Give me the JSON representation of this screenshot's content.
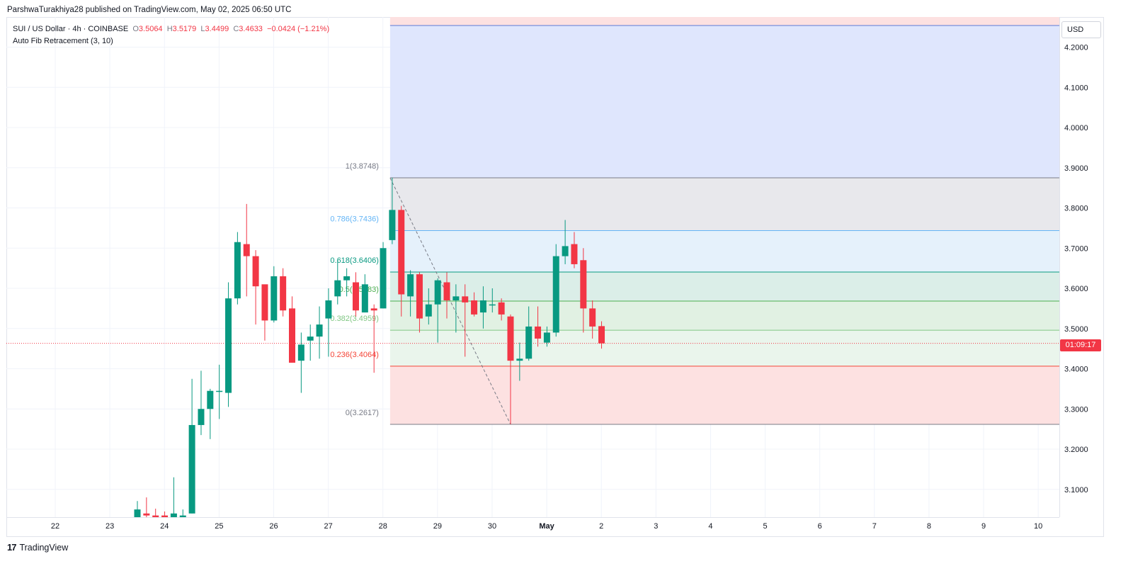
{
  "header": {
    "publish_line": "ParshwaTurakhiya28 published on TradingView.com, May 02, 2025 06:50 UTC"
  },
  "legend": {
    "symbol": "SUI / US Dollar · 4h · COINBASE",
    "open_label": "O",
    "open": "3.5064",
    "high_label": "H",
    "high": "3.5179",
    "low_label": "L",
    "low": "3.4499",
    "close_label": "C",
    "close": "3.4633",
    "change": "−0.0424 (−1.21%)",
    "indicator": "Auto Fib Retracement (3, 10)"
  },
  "currency_button": "USD",
  "current_price_tag": "01:09:17",
  "footer": {
    "logo_mark": "17",
    "logo_text": "TradingView"
  },
  "colors": {
    "up": "#089981",
    "down": "#f23645",
    "grid": "#f0f3fa",
    "fib_1": "#787b86",
    "fib_786": "#64b5f6",
    "fib_618": "#089981",
    "fib_5": "#4caf50",
    "fib_382": "#81c784",
    "fib_236": "#f44336",
    "fib_0": "#787b86"
  },
  "chart_data": {
    "type": "candlestick",
    "title": "SUI / US Dollar · 4h · COINBASE",
    "ylim": [
      3.03,
      4.27
    ],
    "y_ticks": [
      "3.1000",
      "3.2000",
      "3.3000",
      "3.4000",
      "3.5000",
      "3.6000",
      "3.7000",
      "3.8000",
      "3.9000",
      "4.0000",
      "4.1000",
      "4.2000"
    ],
    "x_ticks": [
      "22",
      "23",
      "24",
      "25",
      "26",
      "27",
      "28",
      "29",
      "30",
      "May",
      "2",
      "3",
      "4",
      "5",
      "6",
      "7",
      "8",
      "9",
      "10"
    ],
    "candles": [
      {
        "i": 0,
        "o": 3.025,
        "h": 3.071,
        "l": 3.025,
        "c": 3.05
      },
      {
        "i": 1,
        "o": 3.04,
        "h": 3.08,
        "l": 3.025,
        "c": 3.035
      },
      {
        "i": 2,
        "o": 3.035,
        "h": 3.052,
        "l": 3.025,
        "c": 3.03
      },
      {
        "i": 3,
        "o": 3.035,
        "h": 3.045,
        "l": 3.025,
        "c": 3.03
      },
      {
        "i": 4,
        "o": 3.03,
        "h": 3.13,
        "l": 3.025,
        "c": 3.04
      },
      {
        "i": 5,
        "o": 3.03,
        "h": 3.05,
        "l": 3.025,
        "c": 3.035
      },
      {
        "i": 6,
        "o": 3.04,
        "h": 3.375,
        "l": 3.04,
        "c": 3.26
      },
      {
        "i": 7,
        "o": 3.26,
        "h": 3.395,
        "l": 3.235,
        "c": 3.3
      },
      {
        "i": 8,
        "o": 3.3,
        "h": 3.35,
        "l": 3.225,
        "c": 3.345
      },
      {
        "i": 9,
        "o": 3.345,
        "h": 3.41,
        "l": 3.275,
        "c": 3.345
      },
      {
        "i": 10,
        "o": 3.34,
        "h": 3.615,
        "l": 3.305,
        "c": 3.575
      },
      {
        "i": 11,
        "o": 3.575,
        "h": 3.74,
        "l": 3.56,
        "c": 3.715
      },
      {
        "i": 12,
        "o": 3.71,
        "h": 3.81,
        "l": 3.58,
        "c": 3.68
      },
      {
        "i": 13,
        "o": 3.68,
        "h": 3.695,
        "l": 3.51,
        "c": 3.605
      },
      {
        "i": 14,
        "o": 3.61,
        "h": 3.605,
        "l": 3.47,
        "c": 3.52
      },
      {
        "i": 15,
        "o": 3.52,
        "h": 3.655,
        "l": 3.515,
        "c": 3.63
      },
      {
        "i": 16,
        "o": 3.63,
        "h": 3.65,
        "l": 3.53,
        "c": 3.545
      },
      {
        "i": 17,
        "o": 3.55,
        "h": 3.58,
        "l": 3.415,
        "c": 3.415
      },
      {
        "i": 18,
        "o": 3.42,
        "h": 3.49,
        "l": 3.34,
        "c": 3.46
      },
      {
        "i": 19,
        "o": 3.47,
        "h": 3.51,
        "l": 3.42,
        "c": 3.48
      },
      {
        "i": 20,
        "o": 3.48,
        "h": 3.555,
        "l": 3.425,
        "c": 3.51
      },
      {
        "i": 21,
        "o": 3.525,
        "h": 3.6,
        "l": 3.43,
        "c": 3.57
      },
      {
        "i": 22,
        "o": 3.58,
        "h": 3.67,
        "l": 3.56,
        "c": 3.62
      },
      {
        "i": 23,
        "o": 3.62,
        "h": 3.65,
        "l": 3.58,
        "c": 3.63
      },
      {
        "i": 24,
        "o": 3.615,
        "h": 3.64,
        "l": 3.53,
        "c": 3.545
      },
      {
        "i": 25,
        "o": 3.54,
        "h": 3.635,
        "l": 3.54,
        "c": 3.61
      },
      {
        "i": 26,
        "o": 3.55,
        "h": 3.56,
        "l": 3.39,
        "c": 3.545
      },
      {
        "i": 27,
        "o": 3.55,
        "h": 3.715,
        "l": 3.55,
        "c": 3.7
      },
      {
        "i": 28,
        "o": 3.72,
        "h": 3.875,
        "l": 3.71,
        "c": 3.795
      },
      {
        "i": 29,
        "o": 3.795,
        "h": 3.805,
        "l": 3.53,
        "c": 3.585
      },
      {
        "i": 30,
        "o": 3.58,
        "h": 3.645,
        "l": 3.53,
        "c": 3.635
      },
      {
        "i": 31,
        "o": 3.635,
        "h": 3.64,
        "l": 3.49,
        "c": 3.525
      },
      {
        "i": 32,
        "o": 3.53,
        "h": 3.6,
        "l": 3.51,
        "c": 3.56
      },
      {
        "i": 33,
        "o": 3.56,
        "h": 3.625,
        "l": 3.465,
        "c": 3.62
      },
      {
        "i": 34,
        "o": 3.615,
        "h": 3.64,
        "l": 3.525,
        "c": 3.57
      },
      {
        "i": 35,
        "o": 3.57,
        "h": 3.61,
        "l": 3.49,
        "c": 3.58
      },
      {
        "i": 36,
        "o": 3.58,
        "h": 3.61,
        "l": 3.43,
        "c": 3.565
      },
      {
        "i": 37,
        "o": 3.57,
        "h": 3.59,
        "l": 3.53,
        "c": 3.535
      },
      {
        "i": 38,
        "o": 3.54,
        "h": 3.605,
        "l": 3.5,
        "c": 3.57
      },
      {
        "i": 39,
        "o": 3.56,
        "h": 3.6,
        "l": 3.54,
        "c": 3.56
      },
      {
        "i": 40,
        "o": 3.565,
        "h": 3.575,
        "l": 3.52,
        "c": 3.535
      },
      {
        "i": 41,
        "o": 3.53,
        "h": 3.535,
        "l": 3.262,
        "c": 3.42
      },
      {
        "i": 42,
        "o": 3.42,
        "h": 3.465,
        "l": 3.37,
        "c": 3.425
      },
      {
        "i": 43,
        "o": 3.425,
        "h": 3.555,
        "l": 3.42,
        "c": 3.505
      },
      {
        "i": 44,
        "o": 3.505,
        "h": 3.555,
        "l": 3.455,
        "c": 3.475
      },
      {
        "i": 45,
        "o": 3.465,
        "h": 3.505,
        "l": 3.455,
        "c": 3.49
      },
      {
        "i": 46,
        "o": 3.49,
        "h": 3.71,
        "l": 3.48,
        "c": 3.68
      },
      {
        "i": 47,
        "o": 3.68,
        "h": 3.77,
        "l": 3.66,
        "c": 3.705
      },
      {
        "i": 48,
        "o": 3.71,
        "h": 3.74,
        "l": 3.65,
        "c": 3.66
      },
      {
        "i": 49,
        "o": 3.67,
        "h": 3.7,
        "l": 3.49,
        "c": 3.55
      },
      {
        "i": 50,
        "o": 3.55,
        "h": 3.57,
        "l": 3.475,
        "c": 3.505
      },
      {
        "i": 51,
        "o": 3.506,
        "h": 3.518,
        "l": 3.45,
        "c": 3.463
      }
    ],
    "fib_levels": [
      {
        "ratio": "1",
        "price": 3.8748,
        "label": "1(3.8748)"
      },
      {
        "ratio": "0.786",
        "price": 3.7436,
        "label": "0.786(3.7436)"
      },
      {
        "ratio": "0.618",
        "price": 3.6406,
        "label": "0.618(3.6406)"
      },
      {
        "ratio": "0.5",
        "price": 3.5683,
        "label": "0.5(3.5683)"
      },
      {
        "ratio": "0.382",
        "price": 3.4959,
        "label": "0.382(3.4959)"
      },
      {
        "ratio": "0.236",
        "price": 3.4064,
        "label": "0.236(3.4064)"
      },
      {
        "ratio": "0",
        "price": 3.2617,
        "label": "0(3.2617)"
      }
    ],
    "trend_line": {
      "from": {
        "i": 28,
        "price": 3.8748
      },
      "to": {
        "i": 41,
        "price": 3.2617
      }
    },
    "last_price": 3.4633,
    "grid": true
  }
}
